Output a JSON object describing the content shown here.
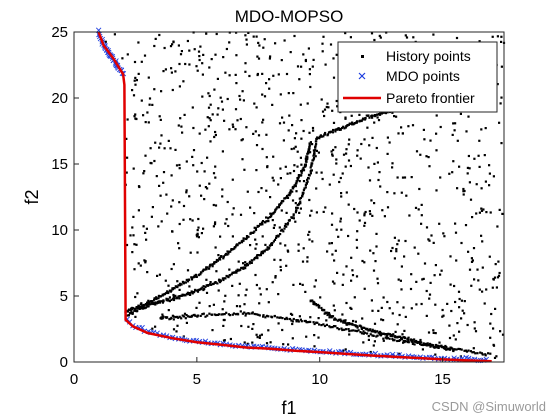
{
  "chart_data": {
    "type": "scatter",
    "title": "MDO-MOPSO",
    "xlabel": "f1",
    "ylabel": "f2",
    "xlim": [
      0,
      17.5
    ],
    "ylim": [
      0,
      25
    ],
    "xticks": [
      0,
      5,
      10,
      15
    ],
    "yticks": [
      0,
      5,
      10,
      15,
      20,
      25
    ],
    "grid": false,
    "legend_position": "top-right",
    "series": [
      {
        "name": "History points",
        "marker": "square-dot",
        "color": "#000000",
        "random_points": 1150,
        "random_x_range": [
          1,
          17.5
        ],
        "random_y_range": [
          0,
          25
        ],
        "curves": [
          [
            [
              2.1,
              3.8
            ],
            [
              3,
              4.5
            ],
            [
              4,
              5.5
            ],
            [
              5,
              6.6
            ],
            [
              6,
              7.9
            ],
            [
              7,
              9.4
            ],
            [
              8,
              11.1
            ],
            [
              8.8,
              12.8
            ],
            [
              9.4,
              14.8
            ],
            [
              9.6,
              16.5
            ]
          ],
          [
            [
              2.2,
              3.6
            ],
            [
              3,
              4.3
            ],
            [
              4,
              4.8
            ],
            [
              5,
              5.4
            ],
            [
              6,
              6.2
            ],
            [
              7,
              7.3
            ],
            [
              8,
              8.8
            ],
            [
              9,
              11.3
            ],
            [
              9.6,
              14.2
            ],
            [
              9.9,
              17
            ]
          ],
          [
            [
              9.6,
              4.7
            ],
            [
              10.5,
              3.4
            ],
            [
              11.5,
              2.7
            ],
            [
              12.5,
              2.2
            ],
            [
              13.5,
              1.8
            ],
            [
              14.5,
              1.3
            ],
            [
              15.5,
              0.9
            ]
          ],
          [
            [
              9.9,
              17
            ],
            [
              11,
              17.8
            ],
            [
              12,
              18.6
            ],
            [
              13,
              19.1
            ],
            [
              14,
              19.5
            ],
            [
              15,
              19.7
            ]
          ],
          [
            [
              3.5,
              3.3
            ],
            [
              5,
              3.5
            ],
            [
              7,
              3.7
            ],
            [
              9,
              3.2
            ],
            [
              11,
              2.5
            ],
            [
              13,
              1.7
            ],
            [
              15,
              1.1
            ],
            [
              17,
              0.5
            ]
          ]
        ]
      },
      {
        "name": "MDO points",
        "marker": "x",
        "color": "#1f3fdf"
      },
      {
        "name": "Pareto frontier",
        "marker": "line",
        "color": "#e00000",
        "x": [
          1.0,
          1.2,
          1.4,
          1.6,
          1.8,
          2.0,
          2.05,
          2.1,
          2.4,
          3.0,
          4.0,
          5.0,
          6.0,
          7.0,
          8.0,
          9.0,
          10.0,
          11.0,
          12.0,
          13.0,
          14.0,
          15.0,
          16.0,
          17.0
        ],
        "y": [
          25.0,
          24.0,
          23.5,
          23.0,
          22.4,
          21.8,
          21.0,
          3.2,
          2.7,
          2.2,
          1.8,
          1.5,
          1.3,
          1.1,
          1.0,
          0.85,
          0.75,
          0.62,
          0.5,
          0.4,
          0.3,
          0.2,
          0.12,
          0.05
        ]
      }
    ]
  },
  "watermark": "CSDN @Simuworld"
}
